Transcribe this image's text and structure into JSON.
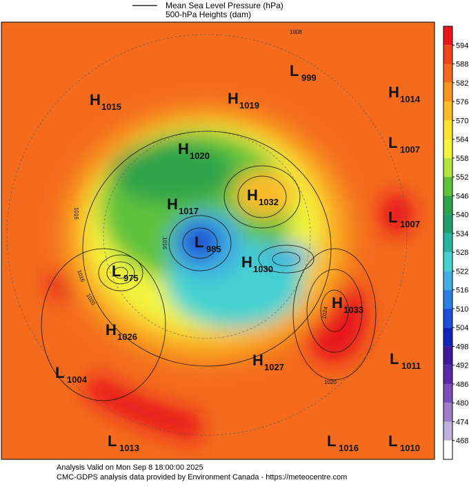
{
  "legend": {
    "line_label": "Mean Sea Level Pressure (hPa)",
    "fill_label": "500-hPa Heights (dam)"
  },
  "centers": [
    {
      "letter": "H",
      "value": "1015"
    },
    {
      "letter": "H",
      "value": "1019"
    },
    {
      "letter": "L",
      "value": "999"
    },
    {
      "letter": "H",
      "value": "1014"
    },
    {
      "letter": "H",
      "value": "1020"
    },
    {
      "letter": "L",
      "value": "1007"
    },
    {
      "letter": "H",
      "value": "1032"
    },
    {
      "letter": "H",
      "value": "1017"
    },
    {
      "letter": "L",
      "value": "1007"
    },
    {
      "letter": "L",
      "value": "985"
    },
    {
      "letter": "H",
      "value": "1030"
    },
    {
      "letter": "L",
      "value": "975"
    },
    {
      "letter": "H",
      "value": "1033"
    },
    {
      "letter": "H",
      "value": "1026"
    },
    {
      "letter": "H",
      "value": "1027"
    },
    {
      "letter": "L",
      "value": "1011"
    },
    {
      "letter": "L",
      "value": "1004"
    },
    {
      "letter": "L",
      "value": "1013"
    },
    {
      "letter": "L",
      "value": "1016"
    },
    {
      "letter": "L",
      "value": "1010"
    }
  ],
  "contour_labels": [
    "1008",
    "1016",
    "1016",
    "1020",
    "1024",
    "1020",
    "1016"
  ],
  "colorbar": {
    "labels": [
      "594",
      "588",
      "582",
      "576",
      "570",
      "564",
      "558",
      "552",
      "546",
      "540",
      "534",
      "528",
      "522",
      "516",
      "510",
      "504",
      "498",
      "492",
      "486",
      "480",
      "474",
      "468"
    ],
    "colors": [
      "#e8161b",
      "#f0441b",
      "#f46b1e",
      "#f7931f",
      "#fbbc2a",
      "#fde12f",
      "#f2f43c",
      "#b6e23c",
      "#5fc23d",
      "#2ea34a",
      "#1e9e6e",
      "#28b5a0",
      "#45d2d0",
      "#3fb0e0",
      "#2a80e0",
      "#1d4fd8",
      "#1027b5",
      "#3c1a9b",
      "#5b2aa5",
      "#7b4fb5",
      "#9c7ec8",
      "#c0b0dc",
      "#ffffff"
    ]
  },
  "footer": {
    "line1": "Analysis Valid on Mon Sep  8 18:00:00 2025",
    "line2": "CMC-GDPS analysis data provided by Environment Canada - https://meteocentre.com"
  }
}
